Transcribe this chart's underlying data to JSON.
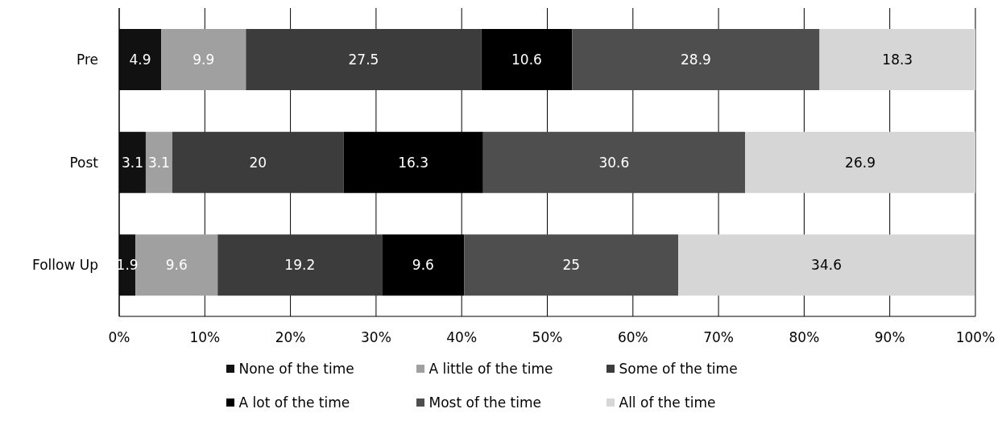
{
  "chart_data": {
    "type": "bar",
    "orientation": "horizontal",
    "stacked": true,
    "categories": [
      "Pre",
      "Post",
      "Follow Up"
    ],
    "series": [
      {
        "name": "None of the time",
        "color": "#111111",
        "values": [
          4.9,
          3.1,
          1.9
        ]
      },
      {
        "name": "A little of the time",
        "color": "#a0a0a0",
        "values": [
          9.9,
          3.1,
          9.6
        ]
      },
      {
        "name": "Some of the time",
        "color": "#3c3c3c",
        "values": [
          27.5,
          20,
          19.2
        ]
      },
      {
        "name": "A lot of the time",
        "color": "#000000",
        "values": [
          10.6,
          16.3,
          9.6
        ]
      },
      {
        "name": "Most of the time",
        "color": "#4e4e4e",
        "values": [
          28.9,
          30.6,
          25
        ]
      },
      {
        "name": "All of the time",
        "color": "#d6d6d6",
        "values": [
          18.3,
          26.9,
          34.6
        ]
      }
    ],
    "xlim": [
      0,
      100
    ],
    "xticks": [
      {
        "value": 0,
        "label": "0%"
      },
      {
        "value": 10,
        "label": "10%"
      },
      {
        "value": 20,
        "label": "20%"
      },
      {
        "value": 30,
        "label": "30%"
      },
      {
        "value": 40,
        "label": "40%"
      },
      {
        "value": 50,
        "label": "50%"
      },
      {
        "value": 60,
        "label": "60%"
      },
      {
        "value": 70,
        "label": "70%"
      },
      {
        "value": 80,
        "label": "80%"
      },
      {
        "value": 90,
        "label": "90%"
      },
      {
        "value": 100,
        "label": "100%"
      }
    ],
    "grid": "x",
    "data_labels": true,
    "legend": "bottom"
  }
}
